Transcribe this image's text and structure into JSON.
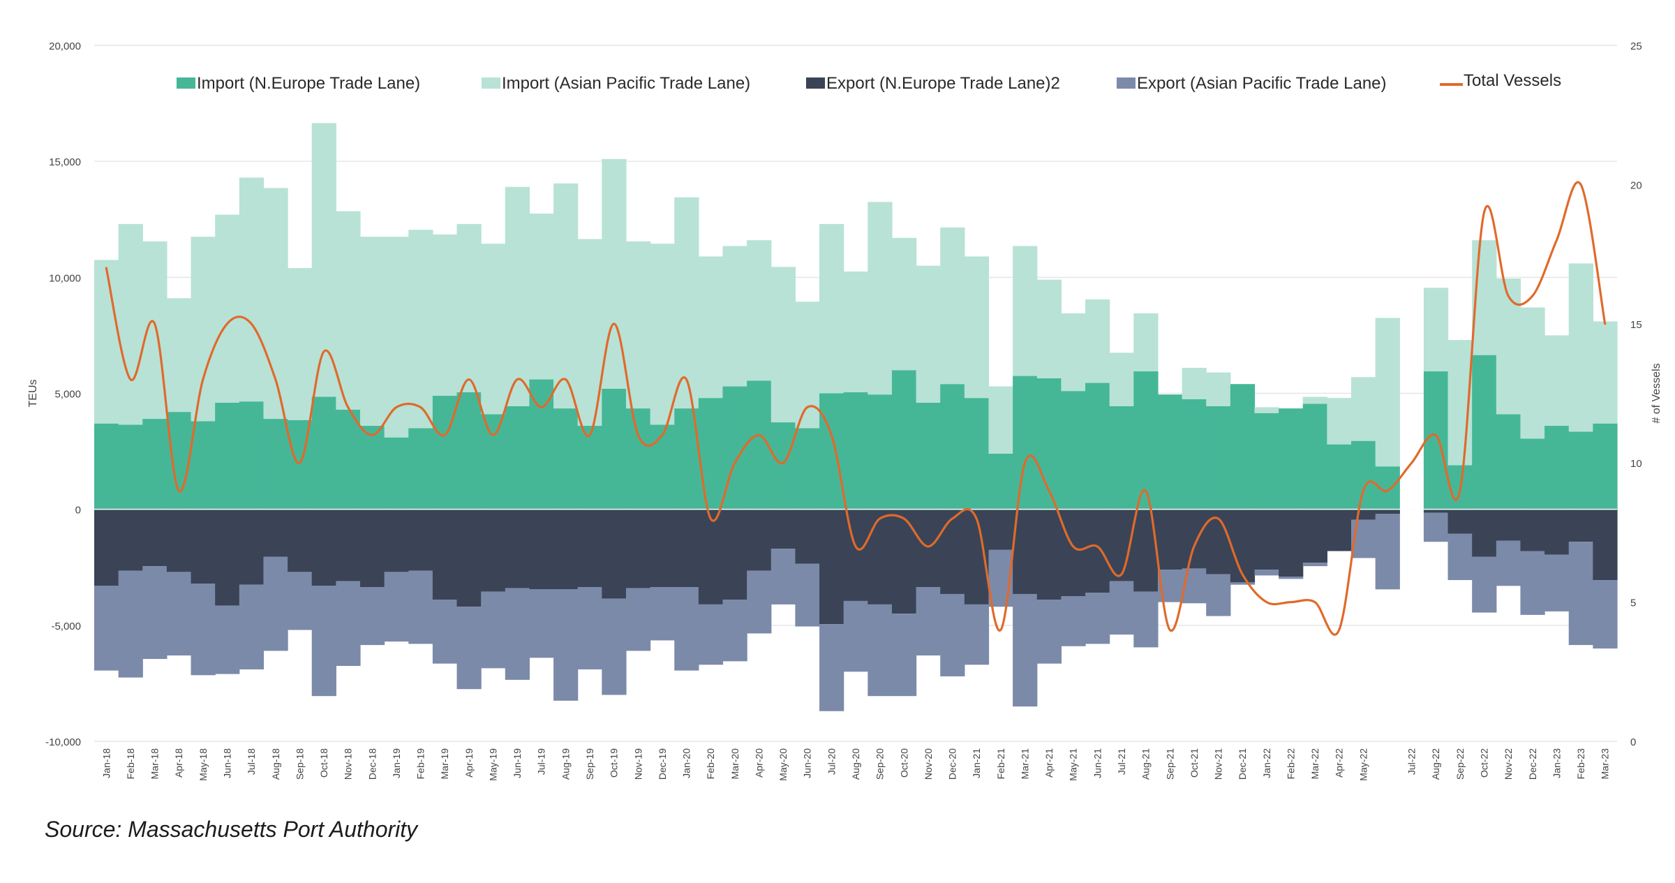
{
  "source_note": "Source: Massachusetts Port Authority",
  "colors": {
    "import_n_europe": "#45b797",
    "import_asian_pacific": "#b8e2d6",
    "export_n_europe": "#3a4456",
    "export_asian_pacific": "#7c8aa9",
    "total_vessels": "#e06a2b",
    "grid": "#e6e6e6",
    "axis_text": "#444444"
  },
  "chart_data": {
    "type": "bar",
    "subtype": "stacked bar with secondary-axis line",
    "ylabel": "TEUs",
    "y2label": "# of Vessels",
    "ylim": [
      -10000,
      20000
    ],
    "y2lim": [
      0,
      25
    ],
    "yticks": [
      "-10,000",
      "-5,000",
      "0",
      "5,000",
      "10,000",
      "15,000",
      "20,000"
    ],
    "y2ticks": [
      "0",
      "5",
      "10",
      "15",
      "20",
      "25"
    ],
    "grid": true,
    "legend_position": "top",
    "categories": [
      "Jan-18",
      "Feb-18",
      "Mar-18",
      "Apr-18",
      "May-18",
      "Jun-18",
      "Jul-18",
      "Aug-18",
      "Sep-18",
      "Oct-18",
      "Nov-18",
      "Dec-18",
      "Jan-19",
      "Feb-19",
      "Mar-19",
      "Apr-19",
      "May-19",
      "Jun-19",
      "Jul-19",
      "Aug-19",
      "Sep-19",
      "Oct-19",
      "Nov-19",
      "Dec-19",
      "Jan-20",
      "Feb-20",
      "Mar-20",
      "Apr-20",
      "May-20",
      "Jun-20",
      "Jul-20",
      "Aug-20",
      "Sep-20",
      "Oct-20",
      "Nov-20",
      "Dec-20",
      "Jan-21",
      "Feb-21",
      "Mar-21",
      "Apr-21",
      "May-21",
      "Jun-21",
      "Jul-21",
      "Aug-21",
      "Sep-21",
      "Oct-21",
      "Nov-21",
      "Dec-21",
      "Jan-22",
      "Feb-22",
      "Mar-22",
      "Apr-22",
      "May-22",
      "",
      "Jul-22",
      "Aug-22",
      "Sep-22",
      "Oct-22",
      "Nov-22",
      "Dec-22",
      "Jan-23",
      "Feb-23",
      "Mar-23"
    ],
    "series": [
      {
        "name": "Import (N.Europe Trade Lane)",
        "kind": "bar_positive",
        "values": [
          3700,
          3650,
          3900,
          4200,
          3800,
          4600,
          4650,
          3900,
          3850,
          4850,
          4300,
          3600,
          3100,
          3500,
          4900,
          5050,
          4100,
          4450,
          5600,
          4350,
          3600,
          5200,
          4350,
          3650,
          4350,
          4800,
          5300,
          5550,
          3750,
          3500,
          5000,
          5050,
          4950,
          6000,
          4600,
          5400,
          4800,
          2400,
          5750,
          5650,
          5100,
          5450,
          4450,
          5950,
          4950,
          4750,
          4450,
          5400,
          4150,
          4350,
          4550,
          2800,
          2950,
          1850,
          0,
          5950,
          1900,
          6650,
          4100,
          3050,
          3600,
          3350,
          3700
        ]
      },
      {
        "name": "Import (Asian Pacific Trade Lane)",
        "kind": "bar_positive",
        "values": [
          7050,
          8650,
          7650,
          4900,
          7950,
          8100,
          9650,
          9950,
          6550,
          11800,
          8550,
          8150,
          8650,
          8550,
          6950,
          7250,
          7350,
          9450,
          7150,
          9700,
          8050,
          9900,
          7200,
          7800,
          9100,
          6100,
          6050,
          6050,
          6700,
          5450,
          7300,
          5200,
          8300,
          5700,
          5900,
          6750,
          6100,
          2900,
          5600,
          4250,
          3350,
          3600,
          2300,
          2500,
          0,
          1350,
          1450,
          0,
          250,
          0,
          300,
          2000,
          2750,
          6400,
          0,
          3600,
          5400,
          4950,
          5850,
          5650,
          3900,
          7250,
          4400
        ]
      },
      {
        "name": "Export (N.Europe Trade Lane)2",
        "kind": "bar_negative",
        "values": [
          3300,
          2650,
          2450,
          2700,
          3200,
          4150,
          3250,
          2050,
          2700,
          3300,
          3100,
          3350,
          2700,
          2650,
          3900,
          4200,
          3550,
          3400,
          3450,
          3450,
          3350,
          3850,
          3400,
          3350,
          3350,
          4100,
          3900,
          2650,
          1700,
          2350,
          4950,
          3950,
          4100,
          4500,
          3350,
          3650,
          4100,
          1750,
          3650,
          3900,
          3750,
          3600,
          3100,
          3550,
          2600,
          2550,
          2800,
          3150,
          2600,
          2900,
          2300,
          1800,
          450,
          200,
          0,
          150,
          1050,
          2050,
          1350,
          1800,
          1950,
          1400,
          3050
        ]
      },
      {
        "name": "Export (Asian Pacific Trade Lane)",
        "kind": "bar_negative",
        "values": [
          3650,
          4600,
          4000,
          3600,
          3950,
          2950,
          3650,
          4050,
          2500,
          4750,
          3650,
          2500,
          3000,
          3150,
          2750,
          3550,
          3300,
          3950,
          2950,
          4800,
          3550,
          4150,
          2700,
          2300,
          3600,
          2600,
          2650,
          2700,
          2400,
          2700,
          3750,
          3050,
          3950,
          3550,
          2950,
          3550,
          2600,
          2450,
          4850,
          2750,
          2150,
          2200,
          2300,
          2400,
          1400,
          1500,
          1800,
          100,
          250,
          100,
          150,
          0,
          1650,
          3250,
          0,
          1250,
          2000,
          2400,
          1950,
          2750,
          2450,
          4450,
          2950
        ]
      },
      {
        "name": "Total Vessels",
        "kind": "line_secondary",
        "values": [
          17,
          13,
          15,
          9,
          13,
          15,
          15,
          13,
          10,
          14,
          12,
          11,
          12,
          12,
          11,
          13,
          11,
          13,
          12,
          13,
          11,
          15,
          11,
          11,
          13,
          8,
          10,
          11,
          10,
          12,
          11,
          7,
          8,
          8,
          7,
          8,
          8,
          4,
          10,
          9,
          7,
          7,
          6,
          9,
          4,
          7,
          8,
          6,
          5,
          5,
          5,
          4,
          9,
          9,
          10,
          11,
          9,
          19,
          16,
          16,
          18,
          20,
          15
        ]
      }
    ]
  }
}
